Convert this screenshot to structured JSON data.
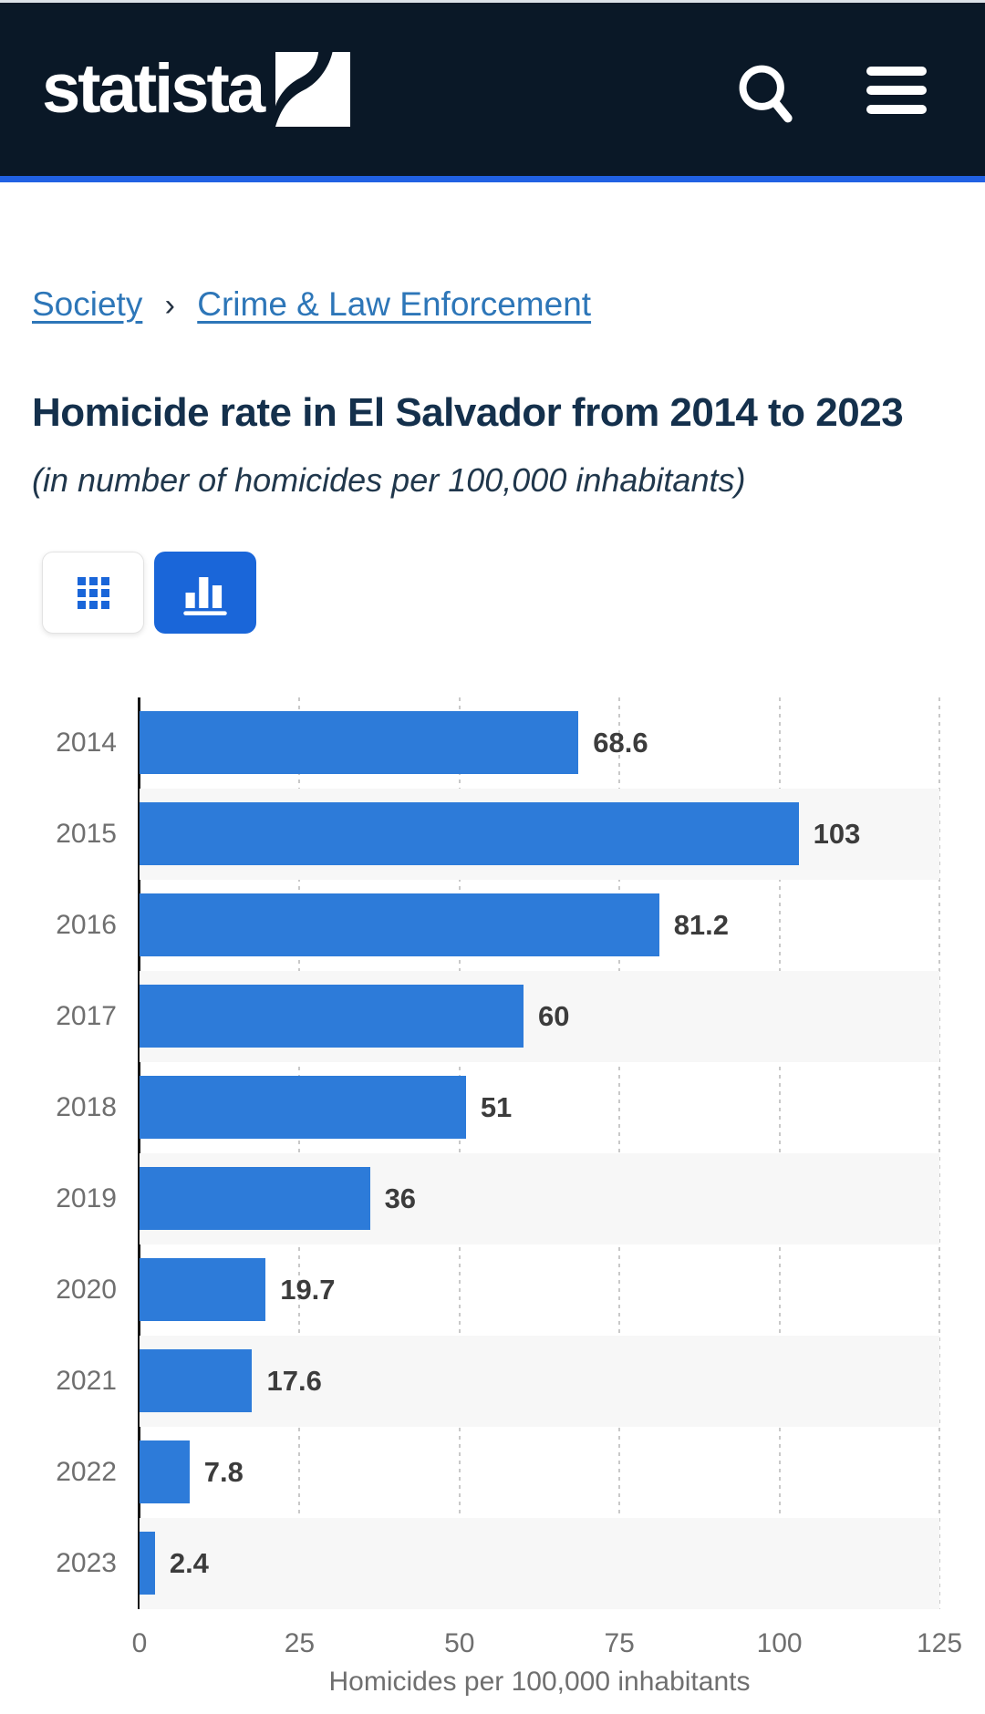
{
  "header": {
    "logo": "statista"
  },
  "breadcrumb": {
    "separator": "›",
    "items": [
      "Society",
      "Crime & Law Enforcement"
    ]
  },
  "title": "Homicide rate in El Salvador from 2014 to 2023",
  "subtitle": "(in number of homicides per 100,000 inhabitants)",
  "toolbar": {
    "table_view_icon": "grid-icon",
    "chart_view_icon": "bar-chart-icon",
    "active_view": "chart"
  },
  "colors": {
    "header_bg": "#0a1827",
    "accent_blue": "#2161e3",
    "link_blue": "#2d76b8",
    "button_blue": "#1a66d9",
    "bar_blue": "#2d7bd9",
    "row_stripe": "#f7f7f7",
    "title_text": "#14304c",
    "axis_text": "#6f6f6f",
    "value_text": "#3c3c3c"
  },
  "chart_data": {
    "type": "bar",
    "orientation": "horizontal",
    "title": "Homicide rate in El Salvador from 2014 to 2023",
    "subtitle": "(in number of homicides per 100,000 inhabitants)",
    "categories": [
      "2014",
      "2015",
      "2016",
      "2017",
      "2018",
      "2019",
      "2020",
      "2021",
      "2022",
      "2023"
    ],
    "values": [
      68.6,
      103,
      81.2,
      60,
      51,
      36,
      19.7,
      17.6,
      7.8,
      2.4
    ],
    "value_labels": [
      "68.6",
      "103",
      "81.2",
      "60",
      "51",
      "36",
      "19.7",
      "17.6",
      "7.8",
      "2.4"
    ],
    "xlabel": "Homicides per 100,000 inhabitants",
    "ylabel": "",
    "xlim": [
      0,
      125
    ],
    "x_ticks": [
      0,
      25,
      50,
      75,
      100,
      125
    ],
    "grid": true,
    "legend": false
  }
}
